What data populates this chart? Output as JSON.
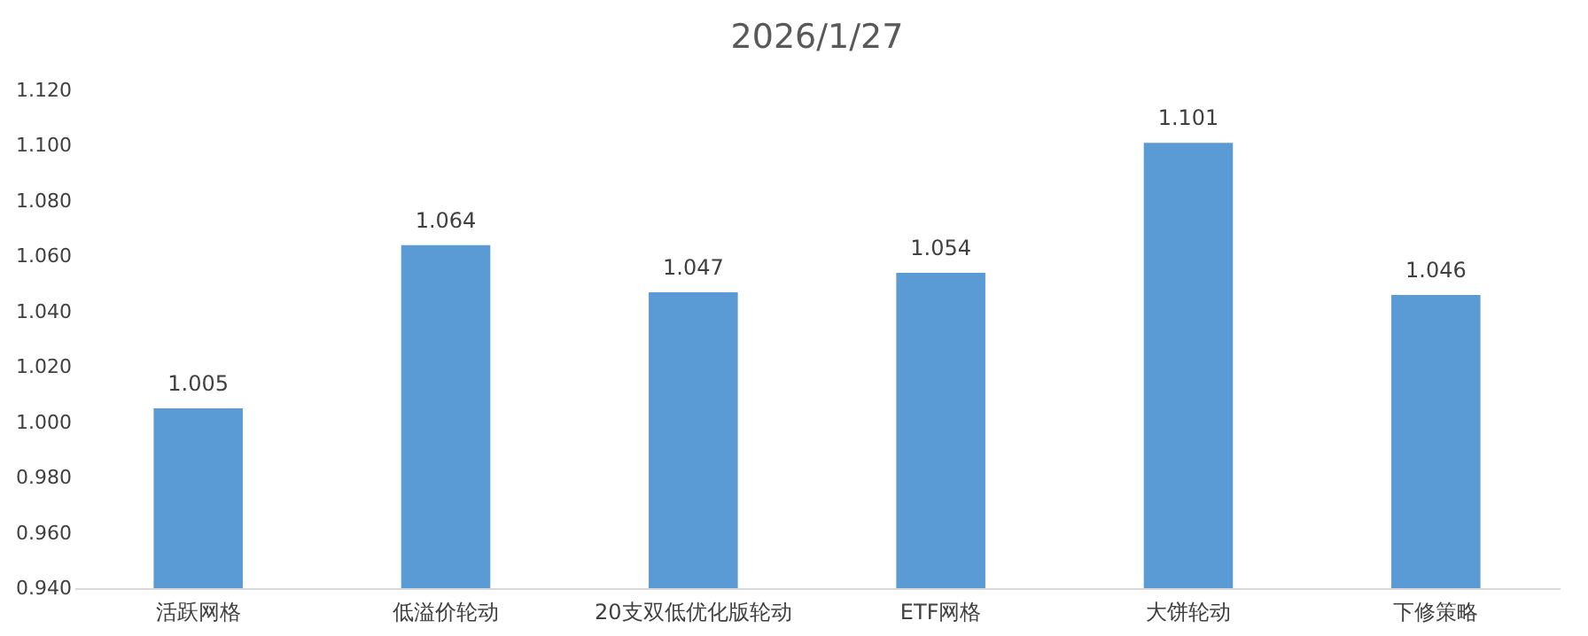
{
  "chart_data": {
    "type": "bar",
    "title": "2026/1/27",
    "categories": [
      "活跃网格",
      "低溢价轮动",
      "20支双低优化版轮动",
      "ETF网格",
      "大饼轮动",
      "下修策略"
    ],
    "values": [
      1.005,
      1.064,
      1.047,
      1.054,
      1.101,
      1.046
    ],
    "color": "#5b9bd5",
    "ylim": [
      0.94,
      1.12
    ],
    "yticks": [
      {
        "value": 0.94,
        "label": "0.940"
      },
      {
        "value": 0.96,
        "label": "0.960"
      },
      {
        "value": 0.98,
        "label": "0.980"
      },
      {
        "value": 1.0,
        "label": "1.000"
      },
      {
        "value": 1.02,
        "label": "1.020"
      },
      {
        "value": 1.04,
        "label": "1.040"
      },
      {
        "value": 1.06,
        "label": "1.060"
      },
      {
        "value": 1.08,
        "label": "1.080"
      },
      {
        "value": 1.1,
        "label": "1.100"
      },
      {
        "value": 1.12,
        "label": "1.120"
      }
    ],
    "data_labels": true,
    "grid": false
  }
}
